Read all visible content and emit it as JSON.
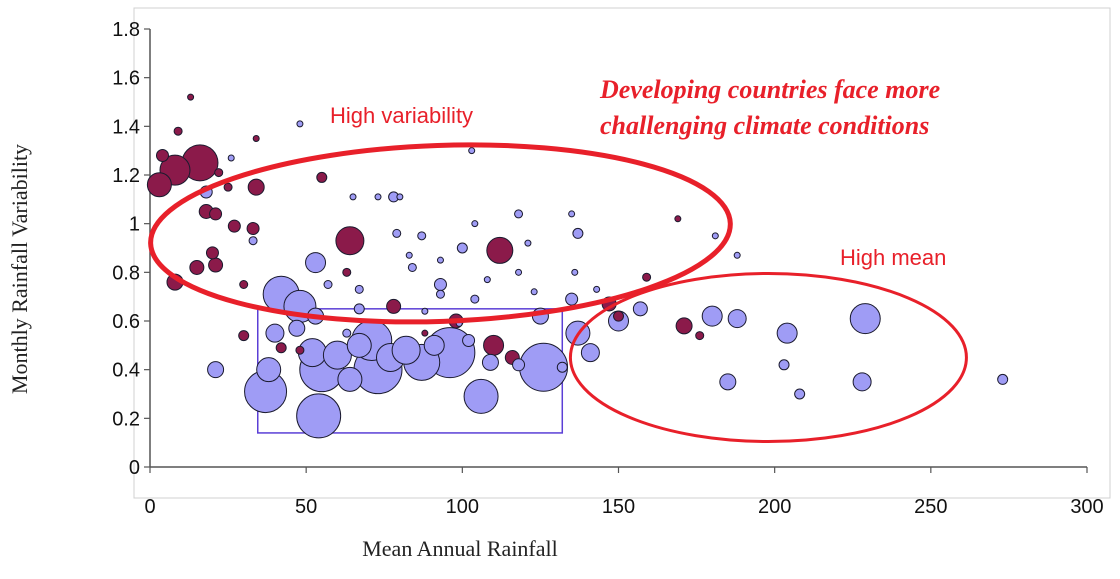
{
  "chart_data": {
    "type": "scatter",
    "title": "Developing countries face more challenging climate conditions",
    "xlabel": "Mean Annual Rainfall",
    "ylabel": "Monthly Rainfall Variability",
    "xlim": [
      0,
      300
    ],
    "ylim": [
      0,
      1.8
    ],
    "xticks": [
      "0",
      "50",
      "100",
      "150",
      "200",
      "250",
      "300"
    ],
    "yticks": [
      "0",
      "0.2",
      "0.4",
      "0.6",
      "0.8",
      "1",
      "1.2",
      "1.4",
      "1.6",
      "1.8"
    ],
    "grid": false,
    "colors": {
      "developing": "#8b1a4a",
      "developed": "#9f9cf5",
      "annotation": "#e8202a",
      "box": "#5b3fd6"
    },
    "annotations": [
      "High variability",
      "High mean"
    ],
    "series": [
      {
        "color_key": "developing",
        "points": [
          [
            4,
            1.28,
            6
          ],
          [
            3,
            1.16,
            12
          ],
          [
            8,
            1.22,
            15
          ],
          [
            16,
            1.25,
            18
          ],
          [
            13,
            1.52,
            3
          ],
          [
            9,
            1.38,
            4
          ],
          [
            22,
            1.21,
            4
          ],
          [
            34,
            1.35,
            3
          ],
          [
            25,
            1.15,
            4
          ],
          [
            34,
            1.15,
            8
          ],
          [
            55,
            1.19,
            5
          ],
          [
            18,
            1.05,
            7
          ],
          [
            21,
            1.04,
            6
          ],
          [
            27,
            0.99,
            6
          ],
          [
            33,
            0.98,
            6
          ],
          [
            20,
            0.88,
            6
          ],
          [
            21,
            0.83,
            7
          ],
          [
            15,
            0.82,
            7
          ],
          [
            8,
            0.76,
            8
          ],
          [
            30,
            0.75,
            4
          ],
          [
            30,
            0.54,
            5
          ],
          [
            42,
            0.49,
            5
          ],
          [
            64,
            0.93,
            14
          ],
          [
            112,
            0.89,
            13
          ],
          [
            63,
            0.8,
            4
          ],
          [
            78,
            0.66,
            7
          ],
          [
            98,
            0.6,
            7
          ],
          [
            110,
            0.5,
            10
          ],
          [
            116,
            0.45,
            7
          ],
          [
            147,
            0.67,
            7
          ],
          [
            150,
            0.62,
            5
          ],
          [
            159,
            0.78,
            4
          ],
          [
            169,
            1.02,
            3
          ],
          [
            171,
            0.58,
            8
          ],
          [
            176,
            0.54,
            4
          ],
          [
            48,
            0.48,
            4
          ],
          [
            88,
            0.55,
            3
          ]
        ]
      },
      {
        "color_key": "developed",
        "points": [
          [
            48,
            1.41,
            3
          ],
          [
            26,
            1.27,
            3
          ],
          [
            18,
            1.13,
            6
          ],
          [
            33,
            0.93,
            4
          ],
          [
            65,
            1.11,
            3
          ],
          [
            73,
            1.11,
            3
          ],
          [
            80,
            1.11,
            3
          ],
          [
            78,
            1.11,
            5
          ],
          [
            103,
            1.3,
            3
          ],
          [
            118,
            1.04,
            4
          ],
          [
            104,
            1,
            3
          ],
          [
            135,
            1.04,
            3
          ],
          [
            79,
            0.96,
            4
          ],
          [
            87,
            0.95,
            4
          ],
          [
            100,
            0.9,
            5
          ],
          [
            121,
            0.92,
            3
          ],
          [
            137,
            0.96,
            5
          ],
          [
            181,
            0.95,
            3
          ],
          [
            188,
            0.87,
            3
          ],
          [
            83,
            0.87,
            3
          ],
          [
            93,
            0.85,
            3
          ],
          [
            84,
            0.82,
            4
          ],
          [
            53,
            0.84,
            10
          ],
          [
            67,
            0.73,
            4
          ],
          [
            93,
            0.75,
            6
          ],
          [
            93,
            0.71,
            4
          ],
          [
            104,
            0.69,
            4
          ],
          [
            108,
            0.77,
            3
          ],
          [
            118,
            0.8,
            3
          ],
          [
            123,
            0.72,
            3
          ],
          [
            136,
            0.8,
            3
          ],
          [
            143,
            0.73,
            3
          ],
          [
            135,
            0.69,
            6
          ],
          [
            42,
            0.71,
            18
          ],
          [
            48,
            0.66,
            16
          ],
          [
            57,
            0.75,
            4
          ],
          [
            67,
            0.65,
            5
          ],
          [
            53,
            0.62,
            8
          ],
          [
            63,
            0.55,
            4
          ],
          [
            88,
            0.64,
            3
          ],
          [
            99,
            0.59,
            3
          ],
          [
            125,
            0.62,
            8
          ],
          [
            150,
            0.6,
            10
          ],
          [
            157,
            0.65,
            7
          ],
          [
            180,
            0.62,
            10
          ],
          [
            188,
            0.61,
            9
          ],
          [
            204,
            0.55,
            10
          ],
          [
            229,
            0.61,
            15
          ],
          [
            40,
            0.55,
            9
          ],
          [
            38,
            0.4,
            12
          ],
          [
            47,
            0.57,
            8
          ],
          [
            52,
            0.47,
            14
          ],
          [
            55,
            0.4,
            22
          ],
          [
            60,
            0.46,
            14
          ],
          [
            64,
            0.36,
            12
          ],
          [
            67,
            0.5,
            12
          ],
          [
            71,
            0.52,
            20
          ],
          [
            73,
            0.4,
            24
          ],
          [
            77,
            0.45,
            14
          ],
          [
            82,
            0.48,
            14
          ],
          [
            87,
            0.43,
            18
          ],
          [
            91,
            0.5,
            10
          ],
          [
            96,
            0.47,
            25
          ],
          [
            102,
            0.52,
            6
          ],
          [
            109,
            0.43,
            8
          ],
          [
            118,
            0.42,
            6
          ],
          [
            126,
            0.41,
            24
          ],
          [
            132,
            0.41,
            5
          ],
          [
            137,
            0.55,
            12
          ],
          [
            141,
            0.47,
            9
          ],
          [
            37,
            0.31,
            21
          ],
          [
            54,
            0.21,
            22
          ],
          [
            106,
            0.29,
            17
          ],
          [
            21,
            0.4,
            8
          ],
          [
            185,
            0.35,
            8
          ],
          [
            203,
            0.42,
            5
          ],
          [
            208,
            0.3,
            5
          ],
          [
            228,
            0.35,
            9
          ],
          [
            273,
            0.36,
            5
          ]
        ]
      }
    ]
  }
}
